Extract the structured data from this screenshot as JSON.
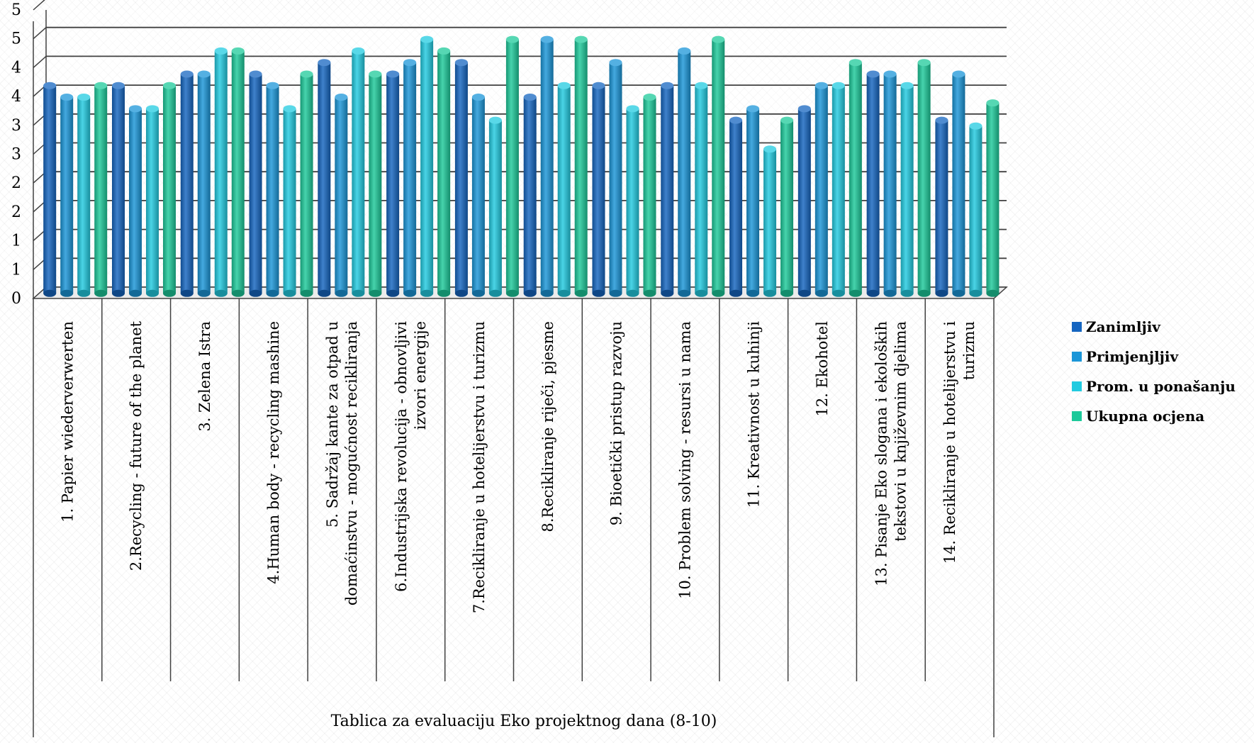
{
  "chart_data": {
    "type": "bar",
    "title": "",
    "xlabel": "Tablica za evaluaciju Eko projektnog dana (8-10)",
    "ylabel": "",
    "ylim": [
      0,
      5
    ],
    "y_tick_labels": [
      "0",
      "1",
      "1",
      "2",
      "2",
      "3",
      "3",
      "4",
      "4",
      "5",
      "5"
    ],
    "grid": true,
    "legend_position": "right",
    "categories": [
      "1. Papier wiederverwerten",
      "2.Recycling - future of the planet",
      "3. Zelena Istra",
      "4.Human body - recycling mashine",
      "5. Sadržaj kante za otpad u domaćinstvu - mogućnost recikliranja",
      "6.Industrijska revolucija - obnovljivi izvori energije",
      "7.Recikliranje u hotelijerstvu i turizmu",
      "8.Recikliranje riječi, pjesme",
      "9. Bioetički pristup razvoju",
      "10. Problem solving -  resursi u nama",
      "11. Kreativnost u kuhinji",
      "12. Ekohotel",
      "13. Pisanje Eko slogana  i ekoloških tekstovi u književnim djelima",
      "14. Recikliranje u hotelijerstvu i turizmu"
    ],
    "category_label_lines": [
      [
        "1. Papier wiederverwerten"
      ],
      [
        "2.Recycling - future of the planet"
      ],
      [
        "3. Zelena Istra"
      ],
      [
        "4.Human body - recycling mashine"
      ],
      [
        "5. Sadržaj kante za otpad u",
        "domaćinstvu - mogućnost recikliranja"
      ],
      [
        "6.Industrijska revolucija - obnovljivi",
        "izvori energije"
      ],
      [
        "7.Recikliranje u hotelijerstvu i turizmu"
      ],
      [
        "8.Recikliranje riječi, pjesme"
      ],
      [
        "9. Bioetički pristup razvoju"
      ],
      [
        "10. Problem solving -  resursi u nama"
      ],
      [
        "11. Kreativnost u kuhinji"
      ],
      [
        "12. Ekohotel"
      ],
      [
        "13. Pisanje Eko slogana  i ekoloških",
        "tekstovi u književnim djelima"
      ],
      [
        "14. Recikliranje u hotelijerstvu i",
        "turizmu"
      ]
    ],
    "series": [
      {
        "name": "Zanimljiv",
        "color": "#1565c0",
        "values": [
          3.6,
          3.6,
          3.8,
          3.8,
          4.0,
          3.8,
          4.0,
          3.4,
          3.6,
          3.6,
          3.0,
          3.2,
          3.8,
          3.0
        ]
      },
      {
        "name": "Primjenjljiv",
        "color": "#1b96d8",
        "values": [
          3.4,
          3.2,
          3.8,
          3.6,
          3.4,
          4.0,
          3.4,
          4.4,
          4.0,
          4.2,
          3.2,
          3.6,
          3.8,
          3.8
        ]
      },
      {
        "name": "Prom. u ponašanju",
        "color": "#22cbe0",
        "values": [
          3.4,
          3.2,
          4.2,
          3.2,
          4.2,
          4.4,
          3.0,
          3.6,
          3.2,
          3.6,
          2.5,
          3.6,
          3.6,
          2.9
        ]
      },
      {
        "name": "Ukupna ocjena",
        "color": "#1dc99a",
        "values": [
          3.6,
          3.6,
          4.2,
          3.8,
          3.8,
          4.2,
          4.4,
          4.4,
          3.4,
          4.4,
          3.0,
          4.0,
          4.0,
          3.3
        ]
      }
    ]
  }
}
